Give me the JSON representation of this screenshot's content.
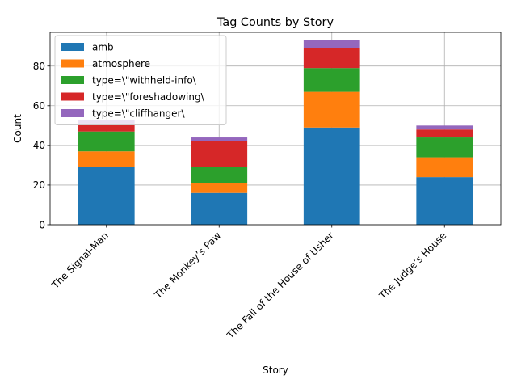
{
  "chart_data": {
    "type": "bar",
    "stacked": true,
    "title": "Tag Counts by Story",
    "xlabel": "Story",
    "ylabel": "Count",
    "ylim": [
      0,
      97
    ],
    "yticks": [
      0,
      20,
      40,
      60,
      80
    ],
    "grid": true,
    "legend_position": "upper-left",
    "categories": [
      "The Signal-Man",
      "The Monkey’s Paw",
      "The Fall of the House of Usher",
      "The Judge’s House"
    ],
    "series": [
      {
        "name": "amb",
        "color": "#1f77b4",
        "values": [
          29,
          16,
          49,
          24
        ]
      },
      {
        "name": "atmosphere",
        "color": "#ff7f0e",
        "values": [
          8,
          5,
          18,
          10
        ]
      },
      {
        "name": "type=\\\"withheld-info\\",
        "color": "#2ca02c",
        "values": [
          10,
          8,
          12,
          10
        ]
      },
      {
        "name": "type=\\\"foreshadowing\\",
        "color": "#d62728",
        "values": [
          4,
          13,
          10,
          4
        ]
      },
      {
        "name": "type=\\\"cliffhanger\\",
        "color": "#9467bd",
        "values": [
          2,
          2,
          4,
          2
        ]
      }
    ]
  }
}
